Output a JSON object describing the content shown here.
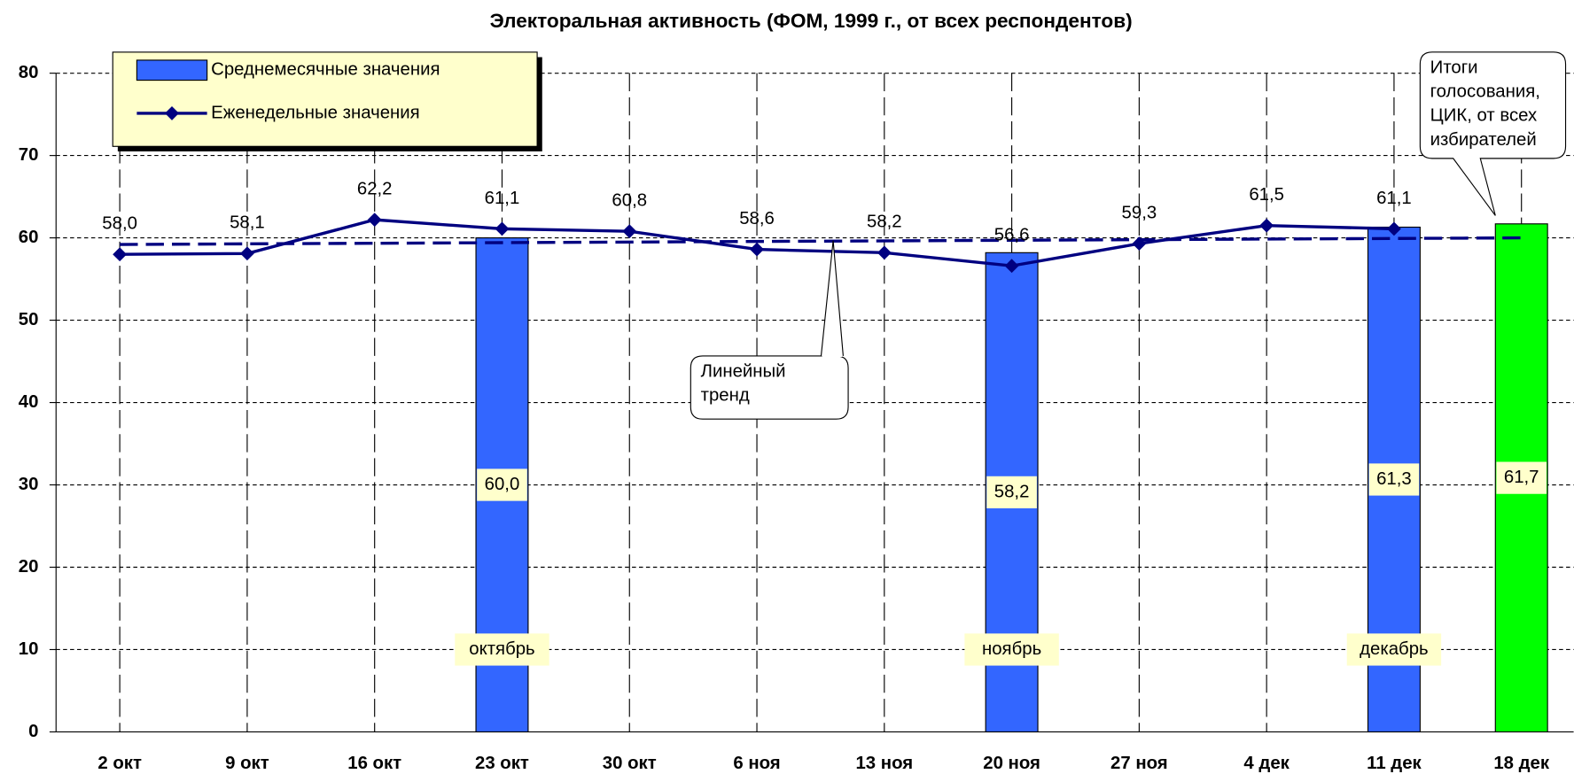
{
  "chart_data": {
    "type": "bar",
    "title": "Электоральная активность (ФОМ, 1999 г., от всех респондентов)",
    "categories": [
      "2 окт",
      "9 окт",
      "16 окт",
      "23 окт",
      "30 окт",
      "6 ноя",
      "13 ноя",
      "20 ноя",
      "27 ноя",
      "4 дек",
      "11 дек",
      "18 дек"
    ],
    "ylim": [
      0,
      80
    ],
    "yticks": [
      0,
      10,
      20,
      30,
      40,
      50,
      60,
      70,
      80
    ],
    "grid": true,
    "series": [
      {
        "name": "Среднемесячные значения",
        "type": "bar",
        "color": "#3366ff",
        "values": [
          null,
          null,
          null,
          60.0,
          null,
          null,
          null,
          58.2,
          null,
          null,
          61.3,
          null
        ],
        "value_labels": [
          null,
          null,
          null,
          "60,0",
          null,
          null,
          null,
          "58,2",
          null,
          null,
          "61,3",
          null
        ],
        "month_labels": [
          null,
          null,
          null,
          "октябрь",
          null,
          null,
          null,
          "ноябрь",
          null,
          null,
          "декабрь",
          null
        ]
      },
      {
        "name": "Еженедельные значения",
        "type": "line",
        "color": "#000080",
        "values": [
          58.0,
          58.1,
          62.2,
          61.1,
          60.8,
          58.6,
          58.2,
          56.6,
          59.3,
          61.5,
          61.1,
          null
        ],
        "value_labels": [
          "58,0",
          "58,1",
          "62,2",
          "61,1",
          "60,8",
          "58,6",
          "58,2",
          "56,6",
          "59,3",
          "61,5",
          "61,1",
          null
        ]
      }
    ],
    "result_bar": {
      "color": "#00ff00",
      "values": [
        null,
        null,
        null,
        null,
        null,
        null,
        null,
        null,
        null,
        null,
        null,
        61.7
      ],
      "value_labels": [
        null,
        null,
        null,
        null,
        null,
        null,
        null,
        null,
        null,
        null,
        null,
        "61,7"
      ],
      "callout": [
        "Итоги",
        "голосования,",
        "ЦИК, от всех",
        "избирателей"
      ]
    },
    "trend": {
      "start": 59.2,
      "end": 60.0,
      "color": "#000080",
      "callout": [
        "Линейный",
        "тренд"
      ]
    }
  }
}
